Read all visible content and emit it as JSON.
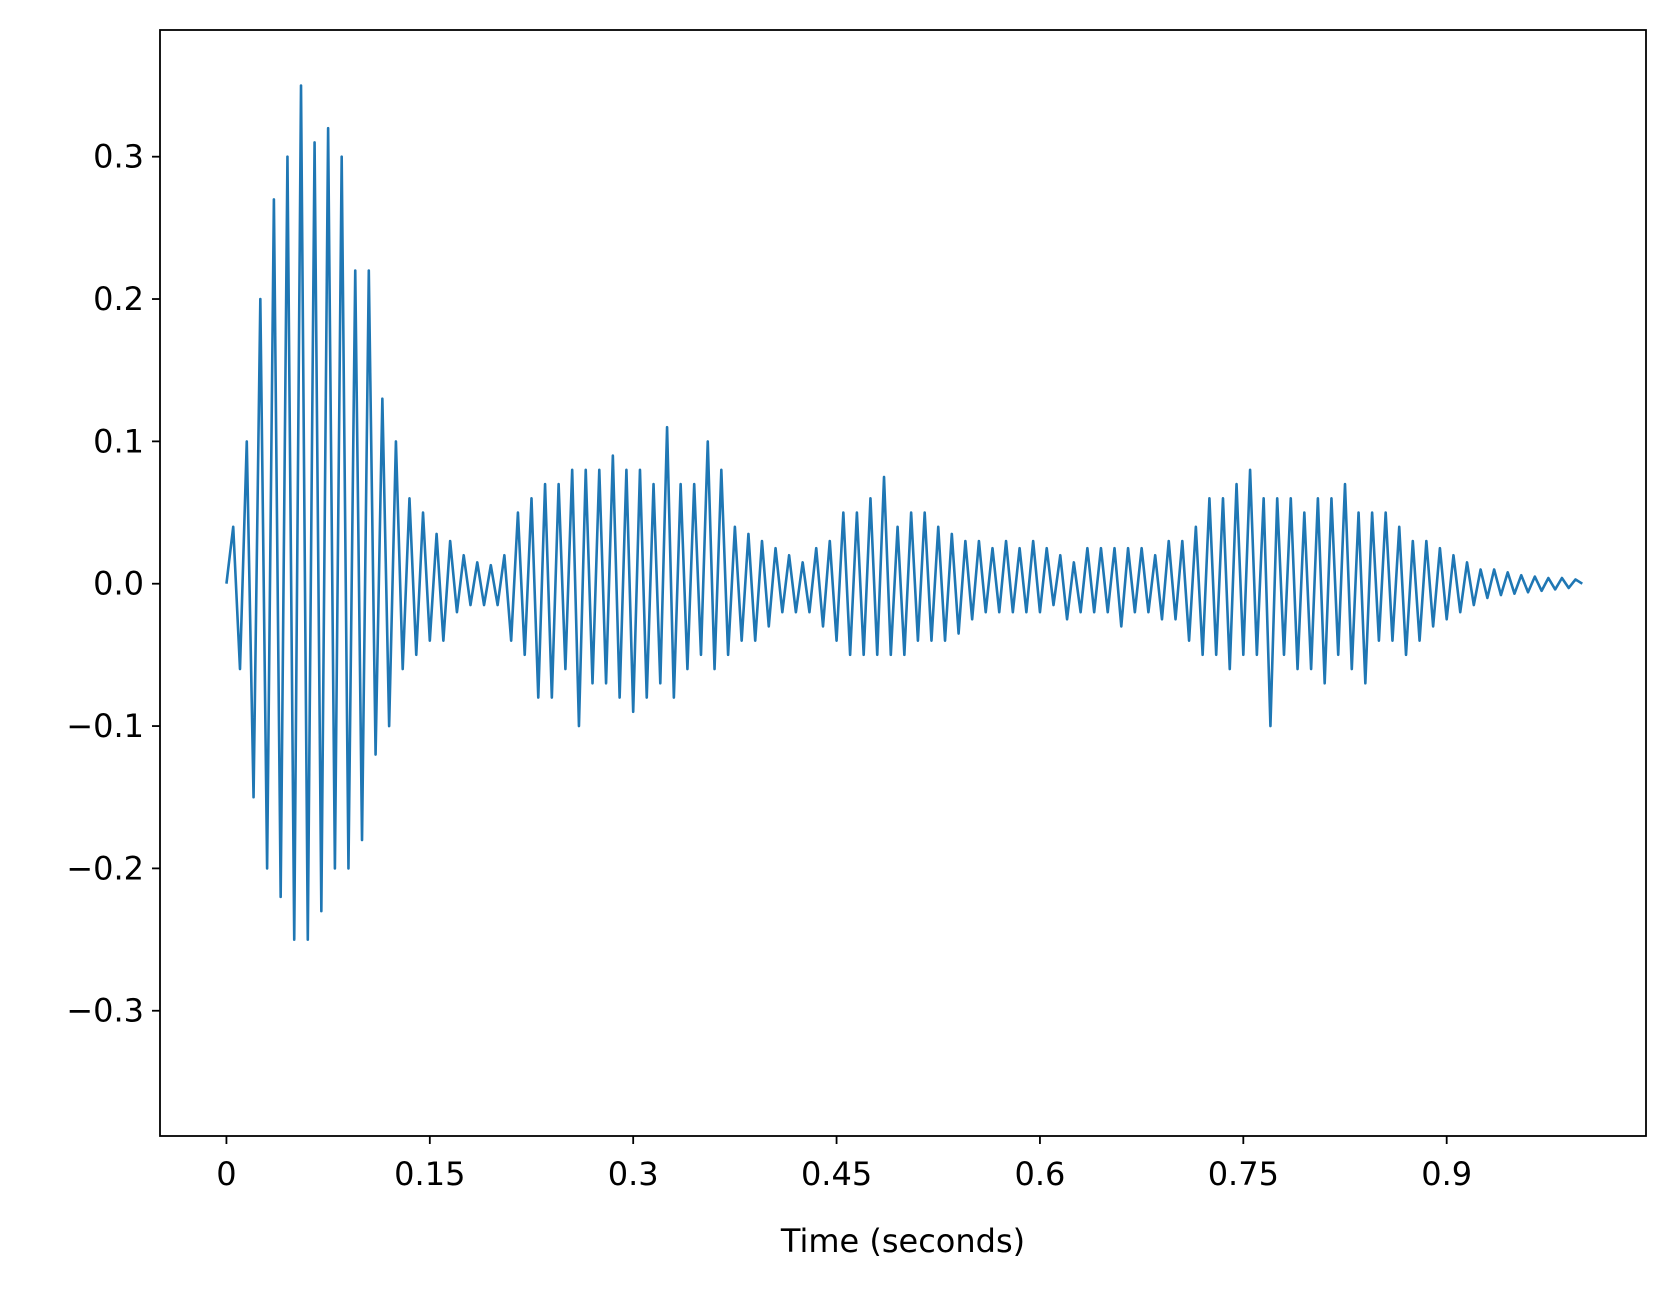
{
  "chart_data": {
    "type": "line",
    "x_label": "Time (seconds)",
    "xlim": [
      -0.049,
      1.047
    ],
    "ylim": [
      -0.388,
      0.389
    ],
    "xticks": [
      0,
      0.15,
      0.3,
      0.45,
      0.6,
      0.75,
      0.9
    ],
    "yticks": [
      {
        "value": -0.3,
        "label": "−0.3"
      },
      {
        "value": -0.2,
        "label": "−0.2"
      },
      {
        "value": -0.1,
        "label": "−0.1"
      },
      {
        "value": 0,
        "label": "0.0"
      },
      0.1,
      0.2,
      0.3
    ],
    "x": [
      0,
      0.005,
      0.01,
      0.015,
      0.02,
      0.025,
      0.03,
      0.035,
      0.04,
      0.045,
      0.05,
      0.055,
      0.06,
      0.065,
      0.07,
      0.075,
      0.08,
      0.085,
      0.09,
      0.095,
      0.1,
      0.105,
      0.11,
      0.115,
      0.12,
      0.125,
      0.13,
      0.135,
      0.14,
      0.145,
      0.15,
      0.155,
      0.16,
      0.165,
      0.17,
      0.175,
      0.18,
      0.185,
      0.19,
      0.195,
      0.2,
      0.205,
      0.21,
      0.215,
      0.22,
      0.225,
      0.23,
      0.235,
      0.24,
      0.245,
      0.25,
      0.255,
      0.26,
      0.265,
      0.27,
      0.275,
      0.28,
      0.285,
      0.29,
      0.295,
      0.3,
      0.305,
      0.31,
      0.315,
      0.32,
      0.325,
      0.33,
      0.335,
      0.34,
      0.345,
      0.35,
      0.355,
      0.36,
      0.365,
      0.37,
      0.375,
      0.38,
      0.385,
      0.39,
      0.395,
      0.4,
      0.405,
      0.41,
      0.415,
      0.42,
      0.425,
      0.43,
      0.435,
      0.44,
      0.445,
      0.45,
      0.455,
      0.46,
      0.465,
      0.47,
      0.475,
      0.48,
      0.485,
      0.49,
      0.495,
      0.5,
      0.505,
      0.51,
      0.515,
      0.52,
      0.525,
      0.53,
      0.535,
      0.54,
      0.545,
      0.55,
      0.555,
      0.56,
      0.565,
      0.57,
      0.575,
      0.58,
      0.585,
      0.59,
      0.595,
      0.6,
      0.605,
      0.61,
      0.615,
      0.62,
      0.625,
      0.63,
      0.635,
      0.64,
      0.645,
      0.65,
      0.655,
      0.66,
      0.665,
      0.67,
      0.675,
      0.68,
      0.685,
      0.69,
      0.695,
      0.7,
      0.705,
      0.71,
      0.715,
      0.72,
      0.725,
      0.73,
      0.735,
      0.74,
      0.745,
      0.75,
      0.755,
      0.76,
      0.765,
      0.77,
      0.775,
      0.78,
      0.785,
      0.79,
      0.795,
      0.8,
      0.805,
      0.81,
      0.815,
      0.82,
      0.825,
      0.83,
      0.835,
      0.84,
      0.845,
      0.85,
      0.855,
      0.86,
      0.865,
      0.87,
      0.875,
      0.88,
      0.885,
      0.89,
      0.895,
      0.9,
      0.905,
      0.91,
      0.915,
      0.92,
      0.925,
      0.93,
      0.935,
      0.94,
      0.945,
      0.95,
      0.955,
      0.96,
      0.965,
      0.97,
      0.975,
      0.98,
      0.985,
      0.99,
      0.995,
      1
    ],
    "series": [
      {
        "color": "#1f77b4",
        "values": [
          0,
          0.04,
          -0.06,
          0.1,
          -0.15,
          0.2,
          -0.2,
          0.27,
          -0.22,
          0.3,
          -0.25,
          0.35,
          -0.25,
          0.31,
          -0.23,
          0.32,
          -0.2,
          0.3,
          -0.2,
          0.22,
          -0.18,
          0.22,
          -0.12,
          0.13,
          -0.1,
          0.1,
          -0.06,
          0.06,
          -0.05,
          0.05,
          -0.04,
          0.035,
          -0.04,
          0.03,
          -0.02,
          0.02,
          -0.015,
          0.015,
          -0.015,
          0.013,
          -0.015,
          0.02,
          -0.04,
          0.05,
          -0.05,
          0.06,
          -0.08,
          0.07,
          -0.08,
          0.07,
          -0.06,
          0.08,
          -0.1,
          0.08,
          -0.07,
          0.08,
          -0.07,
          0.09,
          -0.08,
          0.08,
          -0.09,
          0.08,
          -0.08,
          0.07,
          -0.07,
          0.11,
          -0.08,
          0.07,
          -0.06,
          0.07,
          -0.05,
          0.1,
          -0.06,
          0.08,
          -0.05,
          0.04,
          -0.04,
          0.035,
          -0.04,
          0.03,
          -0.03,
          0.025,
          -0.02,
          0.02,
          -0.02,
          0.015,
          -0.02,
          0.025,
          -0.03,
          0.03,
          -0.04,
          0.05,
          -0.05,
          0.05,
          -0.05,
          0.06,
          -0.05,
          0.075,
          -0.05,
          0.04,
          -0.05,
          0.05,
          -0.04,
          0.05,
          -0.04,
          0.04,
          -0.04,
          0.035,
          -0.035,
          0.03,
          -0.025,
          0.03,
          -0.02,
          0.025,
          -0.02,
          0.03,
          -0.02,
          0.025,
          -0.02,
          0.03,
          -0.02,
          0.025,
          -0.015,
          0.02,
          -0.025,
          0.015,
          -0.02,
          0.025,
          -0.02,
          0.025,
          -0.02,
          0.025,
          -0.03,
          0.025,
          -0.02,
          0.025,
          -0.02,
          0.02,
          -0.025,
          0.03,
          -0.025,
          0.03,
          -0.04,
          0.04,
          -0.05,
          0.06,
          -0.05,
          0.06,
          -0.06,
          0.07,
          -0.05,
          0.08,
          -0.05,
          0.06,
          -0.1,
          0.06,
          -0.05,
          0.06,
          -0.06,
          0.05,
          -0.06,
          0.06,
          -0.07,
          0.06,
          -0.05,
          0.07,
          -0.06,
          0.05,
          -0.07,
          0.05,
          -0.04,
          0.05,
          -0.04,
          0.04,
          -0.05,
          0.03,
          -0.04,
          0.03,
          -0.03,
          0.025,
          -0.025,
          0.02,
          -0.02,
          0.015,
          -0.015,
          0.01,
          -0.01,
          0.01,
          -0.008,
          0.008,
          -0.007,
          0.006,
          -0.006,
          0.005,
          -0.005,
          0.004,
          -0.004,
          0.004,
          -0.003,
          0.003,
          0
        ]
      }
    ]
  }
}
